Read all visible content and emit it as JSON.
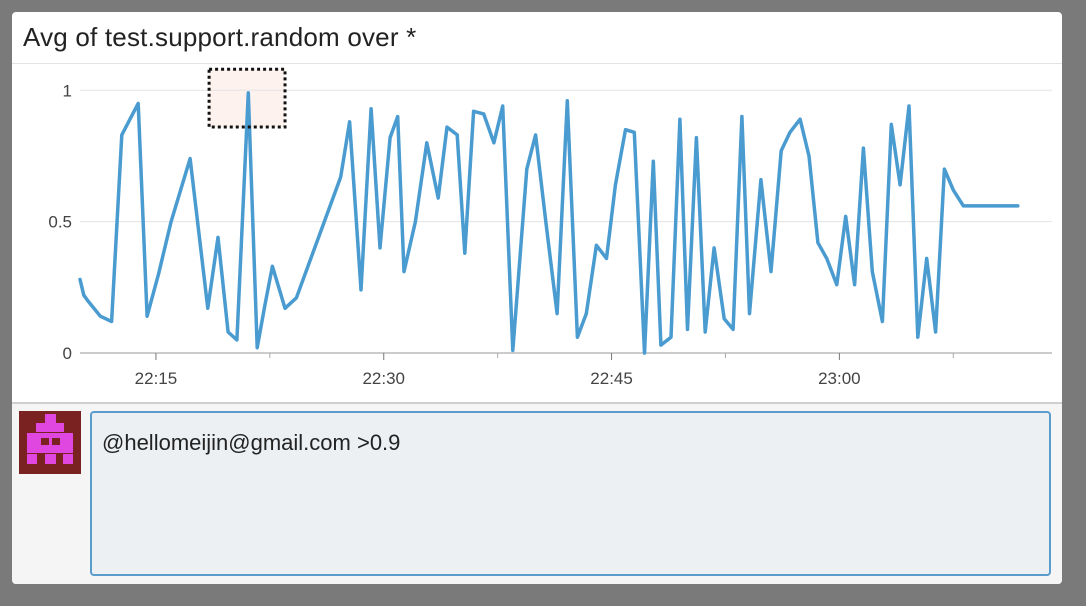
{
  "widget": {
    "title": "Avg of test.support.random over *"
  },
  "comment": {
    "text": "@hellomeijin@gmail.com >0.9"
  },
  "colors": {
    "line": "#4a9bd0",
    "avatar_bg": "#7a2222",
    "avatar_fg": "#e046e0",
    "highlight": "#fdf2ee",
    "comment_border": "#5a9ccc"
  },
  "chart_data": {
    "type": "line",
    "title": "Avg of test.support.random over *",
    "xlabel": "",
    "ylabel": "",
    "ylim": [
      0,
      1.1
    ],
    "xlim": [
      "22:10",
      "23:14"
    ],
    "x_ticks": [
      "22:15",
      "22:30",
      "22:45",
      "23:00"
    ],
    "y_ticks": [
      0,
      0.5,
      1
    ],
    "grid": true,
    "legend": "none",
    "series": [
      {
        "x": [
          "22:10:00",
          "22:10:15",
          "22:10:30",
          "22:11:20",
          "22:12:05",
          "22:12:45",
          "22:13:50",
          "22:14:25",
          "22:15:10",
          "22:16:00",
          "22:17:15",
          "22:18:25",
          "22:19:05",
          "22:19:45",
          "22:20:20",
          "22:21:05",
          "22:21:40",
          "22:22:10",
          "22:22:40",
          "22:23:30",
          "22:24:15",
          "22:27:10",
          "22:27:45",
          "22:28:30",
          "22:29:10",
          "22:29:45",
          "22:30:25",
          "22:30:55",
          "22:31:20",
          "22:32:05",
          "22:32:50",
          "22:33:35",
          "22:34:10",
          "22:34:50",
          "22:35:20",
          "22:35:55",
          "22:36:35",
          "22:37:15",
          "22:37:50",
          "22:38:30",
          "22:39:25",
          "22:40:00",
          "22:40:40",
          "22:41:25",
          "22:42:05",
          "22:42:45",
          "22:43:20",
          "22:44:00",
          "22:44:40",
          "22:45:15",
          "22:45:55",
          "22:46:30",
          "22:47:10",
          "22:47:45",
          "22:48:15",
          "22:48:55",
          "22:49:30",
          "22:50:00",
          "22:50:35",
          "22:51:10",
          "22:51:45",
          "22:52:25",
          "22:53:00",
          "22:53:35",
          "22:54:05",
          "22:54:50",
          "22:55:30",
          "22:56:10",
          "22:56:45",
          "22:57:25",
          "22:58:00",
          "22:58:35",
          "22:59:10",
          "22:59:50",
          "23:00:25",
          "23:01:00",
          "23:01:35",
          "23:02:10",
          "23:02:50",
          "23:03:25",
          "23:04:00",
          "23:04:35",
          "23:05:10",
          "23:05:45",
          "23:06:20",
          "23:06:55",
          "23:07:30",
          "23:08:10",
          "23:08:45",
          "23:09:20",
          "23:09:55",
          "23:10:35",
          "23:11:10",
          "23:11:45"
        ],
        "values": [
          0.28,
          0.22,
          0.2,
          0.14,
          0.12,
          0.83,
          0.95,
          0.14,
          0.3,
          0.5,
          0.74,
          0.17,
          0.44,
          0.08,
          0.05,
          0.99,
          0.02,
          0.18,
          0.33,
          0.17,
          0.21,
          0.67,
          0.88,
          0.24,
          0.93,
          0.4,
          0.82,
          0.9,
          0.31,
          0.5,
          0.8,
          0.59,
          0.86,
          0.83,
          0.38,
          0.92,
          0.91,
          0.8,
          0.94,
          0.01,
          0.7,
          0.83,
          0.5,
          0.15,
          0.96,
          0.06,
          0.15,
          0.41,
          0.36,
          0.64,
          0.85,
          0.84,
          0.0,
          0.73,
          0.03,
          0.06,
          0.89,
          0.09,
          0.82,
          0.08,
          0.4,
          0.13,
          0.09,
          0.9,
          0.15,
          0.66,
          0.31,
          0.77,
          0.84,
          0.89,
          0.75,
          0.42,
          0.36,
          0.26,
          0.52,
          0.26,
          0.78,
          0.31,
          0.12,
          0.87,
          0.64,
          0.94,
          0.06,
          0.36,
          0.08,
          0.7,
          0.62,
          0.56,
          0.56,
          0.56,
          0.56,
          0.56,
          0.56,
          0.56
        ]
      }
    ]
  }
}
